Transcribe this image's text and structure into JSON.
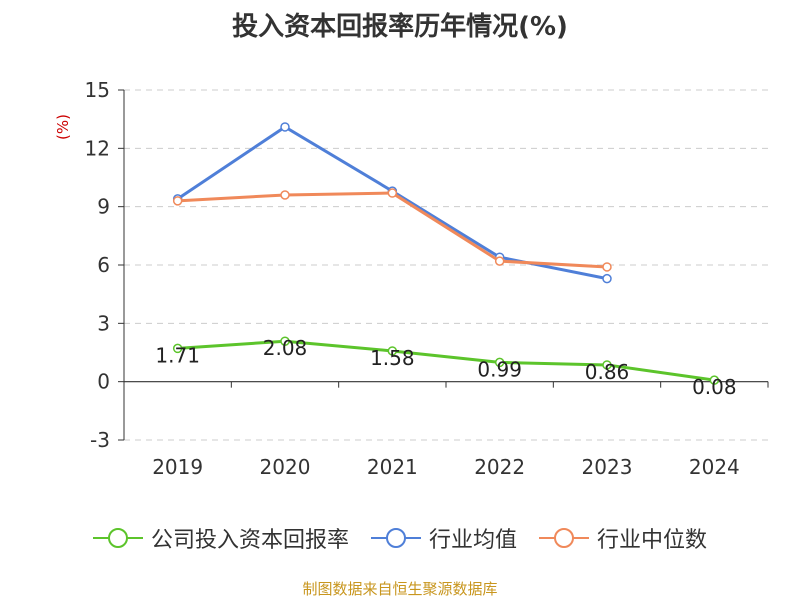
{
  "title": "投入资本回报率历年情况(%)",
  "source": "制图数据来自恒生聚源数据库",
  "chart_data": {
    "type": "line",
    "title": "投入资本回报率历年情况(%)",
    "ylabel": "(%)",
    "categories": [
      "2019",
      "2020",
      "2021",
      "2022",
      "2023",
      "2024"
    ],
    "yticks": [
      "15",
      "12",
      "9",
      "6",
      "3",
      "0",
      "-3"
    ],
    "ylim": [
      -3,
      15
    ],
    "grid": true,
    "legend_position": "bottom",
    "series": [
      {
        "name": "公司投入资本回报率",
        "color": "#5cc42b",
        "values": [
          1.71,
          2.08,
          1.58,
          0.99,
          0.86,
          0.08
        ],
        "labels": [
          "1.71",
          "2.08",
          "1.58",
          "0.99",
          "0.86",
          "0.08"
        ]
      },
      {
        "name": "行业均值",
        "color": "#4f7fd8",
        "values": [
          9.4,
          13.1,
          9.8,
          6.4,
          5.3,
          null
        ]
      },
      {
        "name": "行业中位数",
        "color": "#f0895a",
        "values": [
          9.3,
          9.6,
          9.7,
          6.2,
          5.9,
          null
        ]
      }
    ]
  }
}
